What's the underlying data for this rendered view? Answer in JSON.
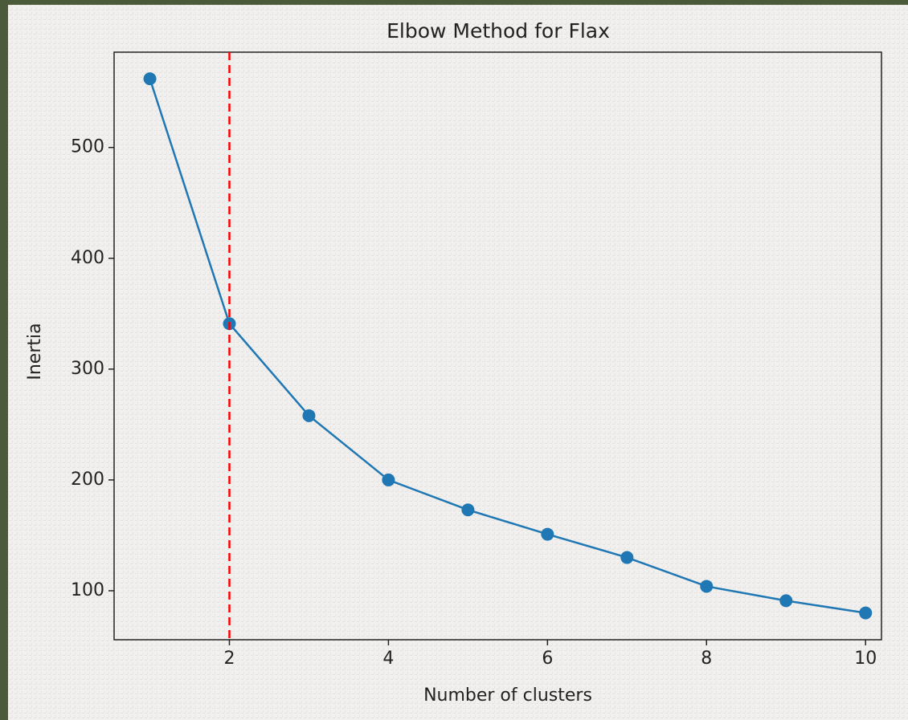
{
  "chart_data": {
    "type": "line",
    "title": "Elbow Method for Flax",
    "x_label": "Number of clusters",
    "y_label": "Inertia",
    "x": [
      1,
      2,
      3,
      4,
      5,
      6,
      7,
      8,
      9,
      10
    ],
    "series": [
      {
        "name": "Inertia",
        "color": "#1f77b4",
        "values": [
          562,
          341,
          258,
          200,
          173,
          151,
          130,
          104,
          91,
          80
        ]
      }
    ],
    "vline": 2,
    "vline_color": "red",
    "xlim": [
      0.55,
      10.2
    ],
    "xticks": [
      2,
      4,
      6,
      8,
      10
    ],
    "ylim": [
      55.8,
      586
    ],
    "yticks": [
      100,
      200,
      300,
      400,
      500
    ],
    "grid": false
  }
}
